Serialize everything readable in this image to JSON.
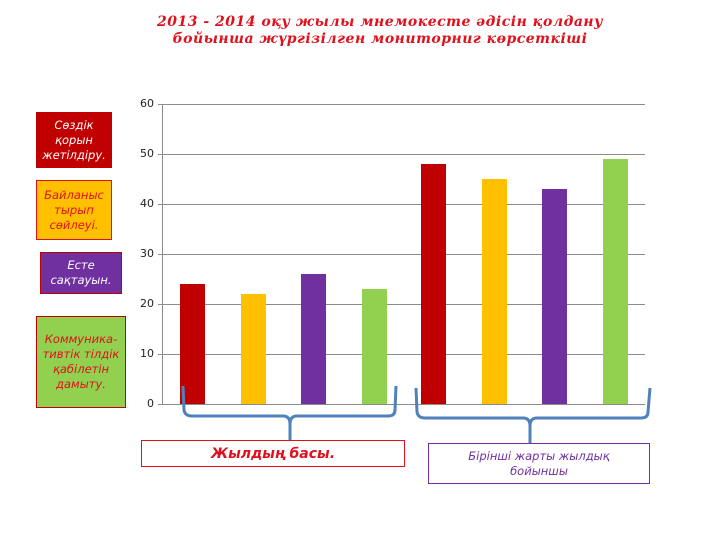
{
  "title": "2013 - 2014 оқу жылы мнемокесте әдісін қолдану бойынша жүргізілген мониторниг көрсеткіші",
  "legend": [
    {
      "label": "Сөздік қорын жетілдіру.",
      "bg": "#c00000",
      "text_color": "#ffffff",
      "border": "#c00000"
    },
    {
      "label": "Байланыс тырып сөйлеуі.",
      "bg": "#ffc000",
      "text_color": "#e0101c",
      "border": "#e0101c"
    },
    {
      "label": "Есте сақтауын.",
      "bg": "#7030a0",
      "text_color": "#ffffff",
      "border": "#c00000"
    },
    {
      "label": "Коммуника-тивтік тілдік қабілетін дамыту.",
      "bg": "#92d050",
      "text_color": "#e0101c",
      "border": "#c00000"
    }
  ],
  "group_labels": {
    "group1": "Жылдың басы.",
    "group2": "Бірінші жарты жылдық бойыншы"
  },
  "chart_data": {
    "type": "bar",
    "title": "2013 - 2014 оқу жылы мнемокесте әдісін қолдану бойынша жүргізілген мониторниг көрсеткіші",
    "categories": [
      "Жылдың басы.",
      "Бірінші жарты жылдық бойыншы"
    ],
    "series": [
      {
        "name": "Сөздік қорын жетілдіру.",
        "color": "#c00000",
        "values": [
          24,
          48
        ]
      },
      {
        "name": "Байланыс тырып сөйлеуі.",
        "color": "#ffc000",
        "values": [
          22,
          45
        ]
      },
      {
        "name": "Есте сақтауын.",
        "color": "#7030a0",
        "values": [
          26,
          43
        ]
      },
      {
        "name": "Коммуника-тивтік тілдік қабілетін дамыту.",
        "color": "#92d050",
        "values": [
          23,
          49
        ]
      }
    ],
    "xlabel": "",
    "ylabel": "",
    "ylim": [
      0,
      60
    ],
    "yticks": [
      0,
      10,
      20,
      30,
      40,
      50,
      60
    ],
    "grid": true,
    "legend_position": "left"
  }
}
